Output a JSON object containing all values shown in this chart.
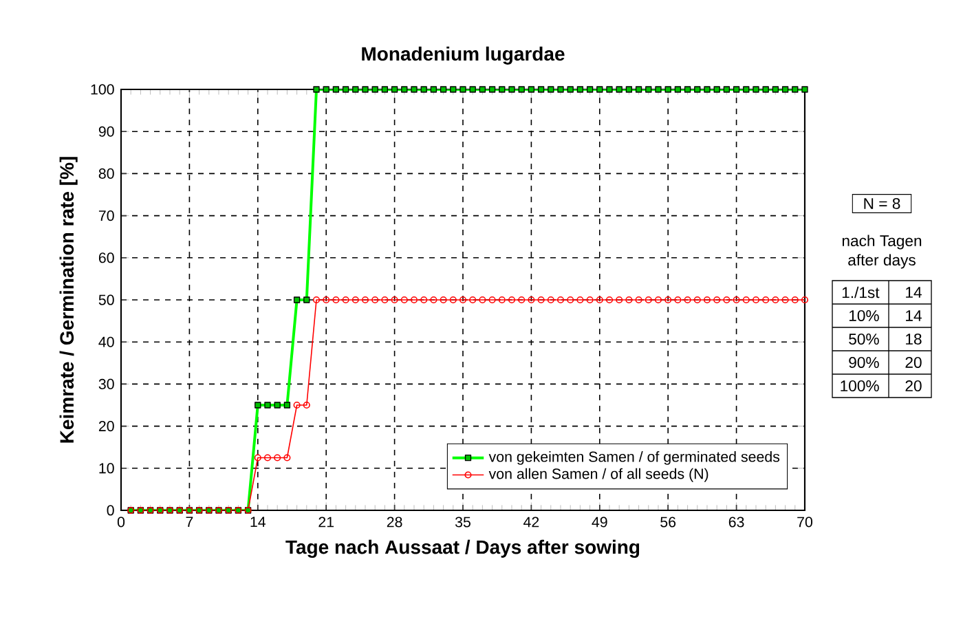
{
  "chart_data": {
    "type": "line",
    "title": "Monadenium lugardae",
    "xlabel": "Tage nach Aussaat / Days after sowing",
    "ylabel": "Keimrate / Germination rate [%]",
    "x": [
      1,
      2,
      3,
      4,
      5,
      6,
      7,
      8,
      9,
      10,
      11,
      12,
      13,
      14,
      15,
      16,
      17,
      18,
      19,
      20,
      21,
      22,
      23,
      24,
      25,
      26,
      27,
      28,
      29,
      30,
      31,
      32,
      33,
      34,
      35,
      36,
      37,
      38,
      39,
      40,
      41,
      42,
      43,
      44,
      45,
      46,
      47,
      48,
      49,
      50,
      51,
      52,
      53,
      54,
      55,
      56,
      57,
      58,
      59,
      60,
      61,
      62,
      63,
      64,
      65,
      66,
      67,
      68,
      69,
      70
    ],
    "series": [
      {
        "name": "von gekeimten Samen / of germinated seeds",
        "color": "#00ff00",
        "marker": "square",
        "values": [
          0,
          0,
          0,
          0,
          0,
          0,
          0,
          0,
          0,
          0,
          0,
          0,
          0,
          25,
          25,
          25,
          25,
          50,
          50,
          100,
          100,
          100,
          100,
          100,
          100,
          100,
          100,
          100,
          100,
          100,
          100,
          100,
          100,
          100,
          100,
          100,
          100,
          100,
          100,
          100,
          100,
          100,
          100,
          100,
          100,
          100,
          100,
          100,
          100,
          100,
          100,
          100,
          100,
          100,
          100,
          100,
          100,
          100,
          100,
          100,
          100,
          100,
          100,
          100,
          100,
          100,
          100,
          100,
          100,
          100
        ]
      },
      {
        "name": "von allen Samen / of all seeds (N)",
        "color": "#ff0000",
        "marker": "circle",
        "values": [
          0,
          0,
          0,
          0,
          0,
          0,
          0,
          0,
          0,
          0,
          0,
          0,
          0,
          12.5,
          12.5,
          12.5,
          12.5,
          25,
          25,
          50,
          50,
          50,
          50,
          50,
          50,
          50,
          50,
          50,
          50,
          50,
          50,
          50,
          50,
          50,
          50,
          50,
          50,
          50,
          50,
          50,
          50,
          50,
          50,
          50,
          50,
          50,
          50,
          50,
          50,
          50,
          50,
          50,
          50,
          50,
          50,
          50,
          50,
          50,
          50,
          50,
          50,
          50,
          50,
          50,
          50,
          50,
          50,
          50,
          50,
          50
        ]
      }
    ],
    "xlim": [
      0,
      70
    ],
    "xticks": [
      0,
      7,
      14,
      21,
      28,
      35,
      42,
      49,
      56,
      63,
      70
    ],
    "ylim": [
      0,
      100
    ],
    "yticks": [
      0,
      10,
      20,
      30,
      40,
      50,
      60,
      70,
      80,
      90,
      100
    ],
    "grid": true,
    "legend": "bottom right",
    "annotations": [
      "N = 8",
      "nach Tagen",
      "after days",
      "1./1st",
      "14",
      "10%",
      "14",
      "50%",
      "18",
      "90%",
      "20",
      "100%",
      "20"
    ]
  }
}
